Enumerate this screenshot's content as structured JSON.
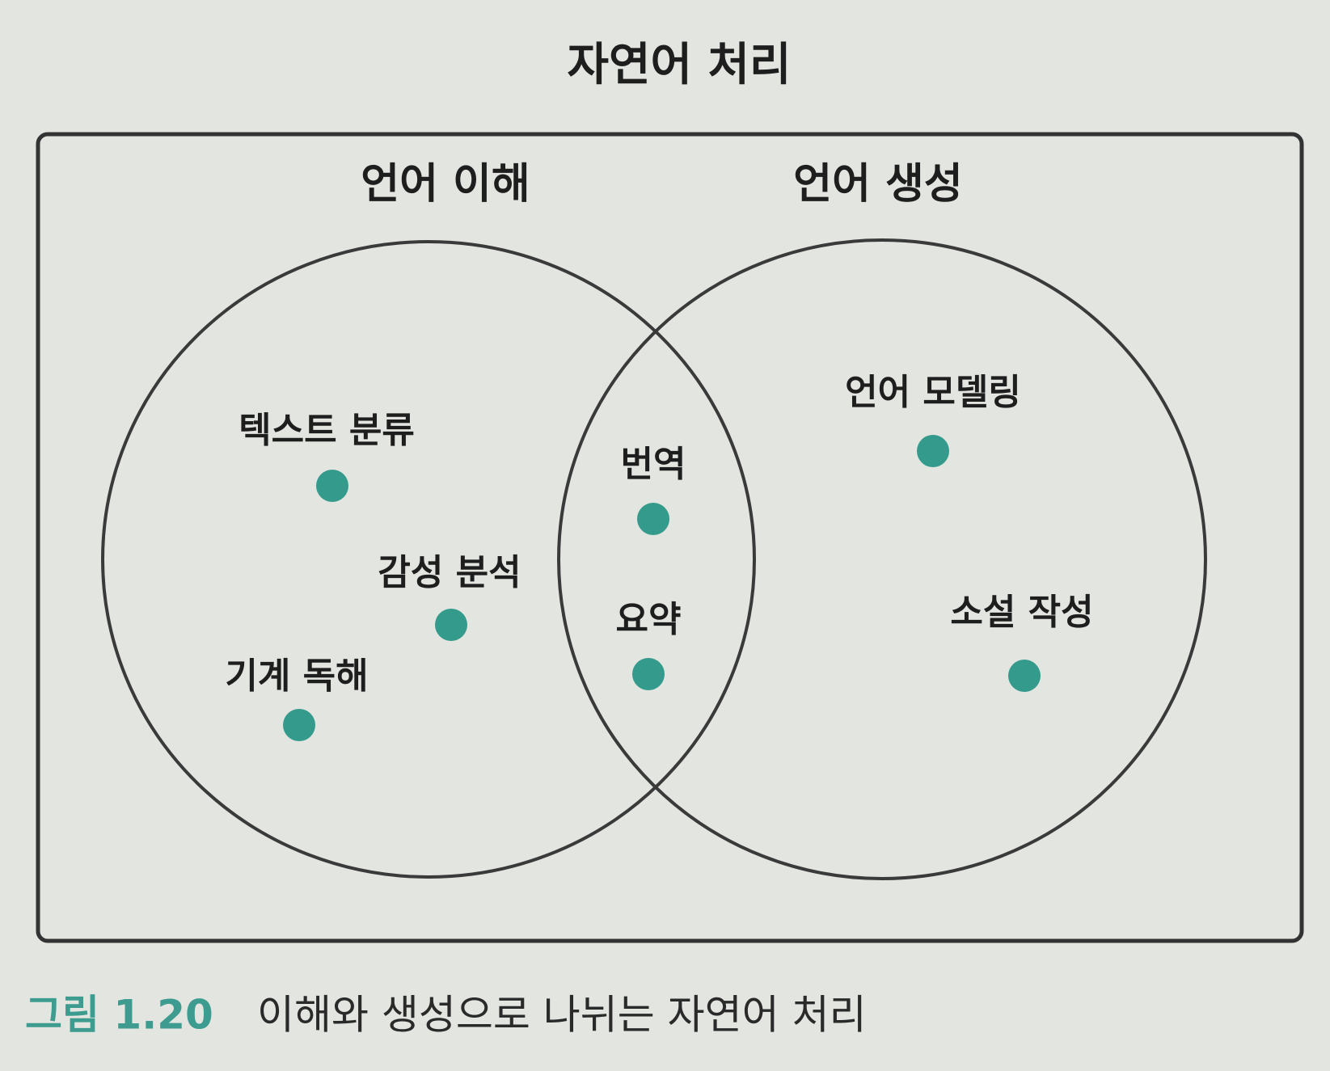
{
  "title": "자연어 처리",
  "sets": [
    {
      "label": "언어 이해"
    },
    {
      "label": "언어 생성"
    }
  ],
  "items": [
    {
      "label": "텍스트 분류"
    },
    {
      "label": "감성 분석"
    },
    {
      "label": "기계 독해"
    },
    {
      "label": "번역"
    },
    {
      "label": "요약"
    },
    {
      "label": "언어 모델링"
    },
    {
      "label": "소설 작성"
    }
  ],
  "caption": {
    "figure": "그림 1.20",
    "text": "이해와 생성으로 나뉘는 자연어 처리"
  }
}
